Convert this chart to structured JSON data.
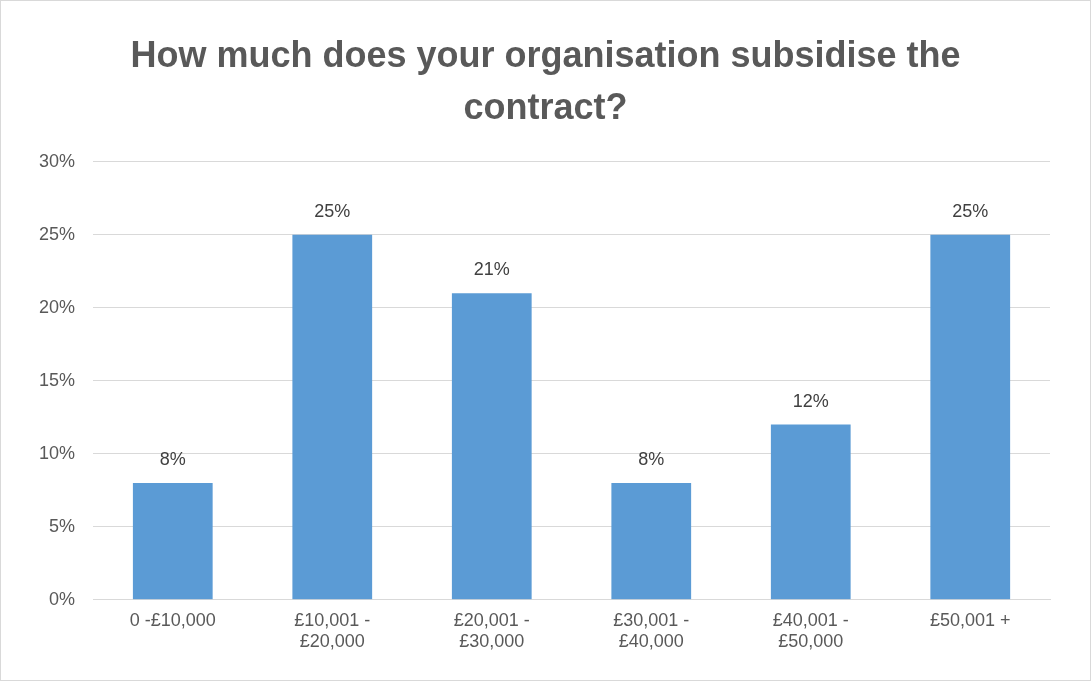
{
  "chart_data": {
    "type": "bar",
    "title": "How much does your organisation subsidise the contract?",
    "categories": [
      "0 -£10,000",
      "£10,001 - £20,000",
      "£20,001 - £30,000",
      "£30,001 - £40,000",
      "£40,001 - £50,000",
      "£50,001 +"
    ],
    "values": [
      8,
      25,
      21,
      8,
      12,
      25
    ],
    "value_labels": [
      "8%",
      "25%",
      "21%",
      "8%",
      "12%",
      "25%"
    ],
    "color": "#5b9bd5",
    "ylim": [
      0,
      30
    ],
    "yticks": [
      {
        "value": 0,
        "label": "0%"
      },
      {
        "value": 5,
        "label": "5%"
      },
      {
        "value": 10,
        "label": "10%"
      },
      {
        "value": 15,
        "label": "15%"
      },
      {
        "value": 20,
        "label": "20%"
      },
      {
        "value": 25,
        "label": "25%"
      },
      {
        "value": 30,
        "label": "30%"
      }
    ],
    "grid": "y",
    "legend": false
  }
}
